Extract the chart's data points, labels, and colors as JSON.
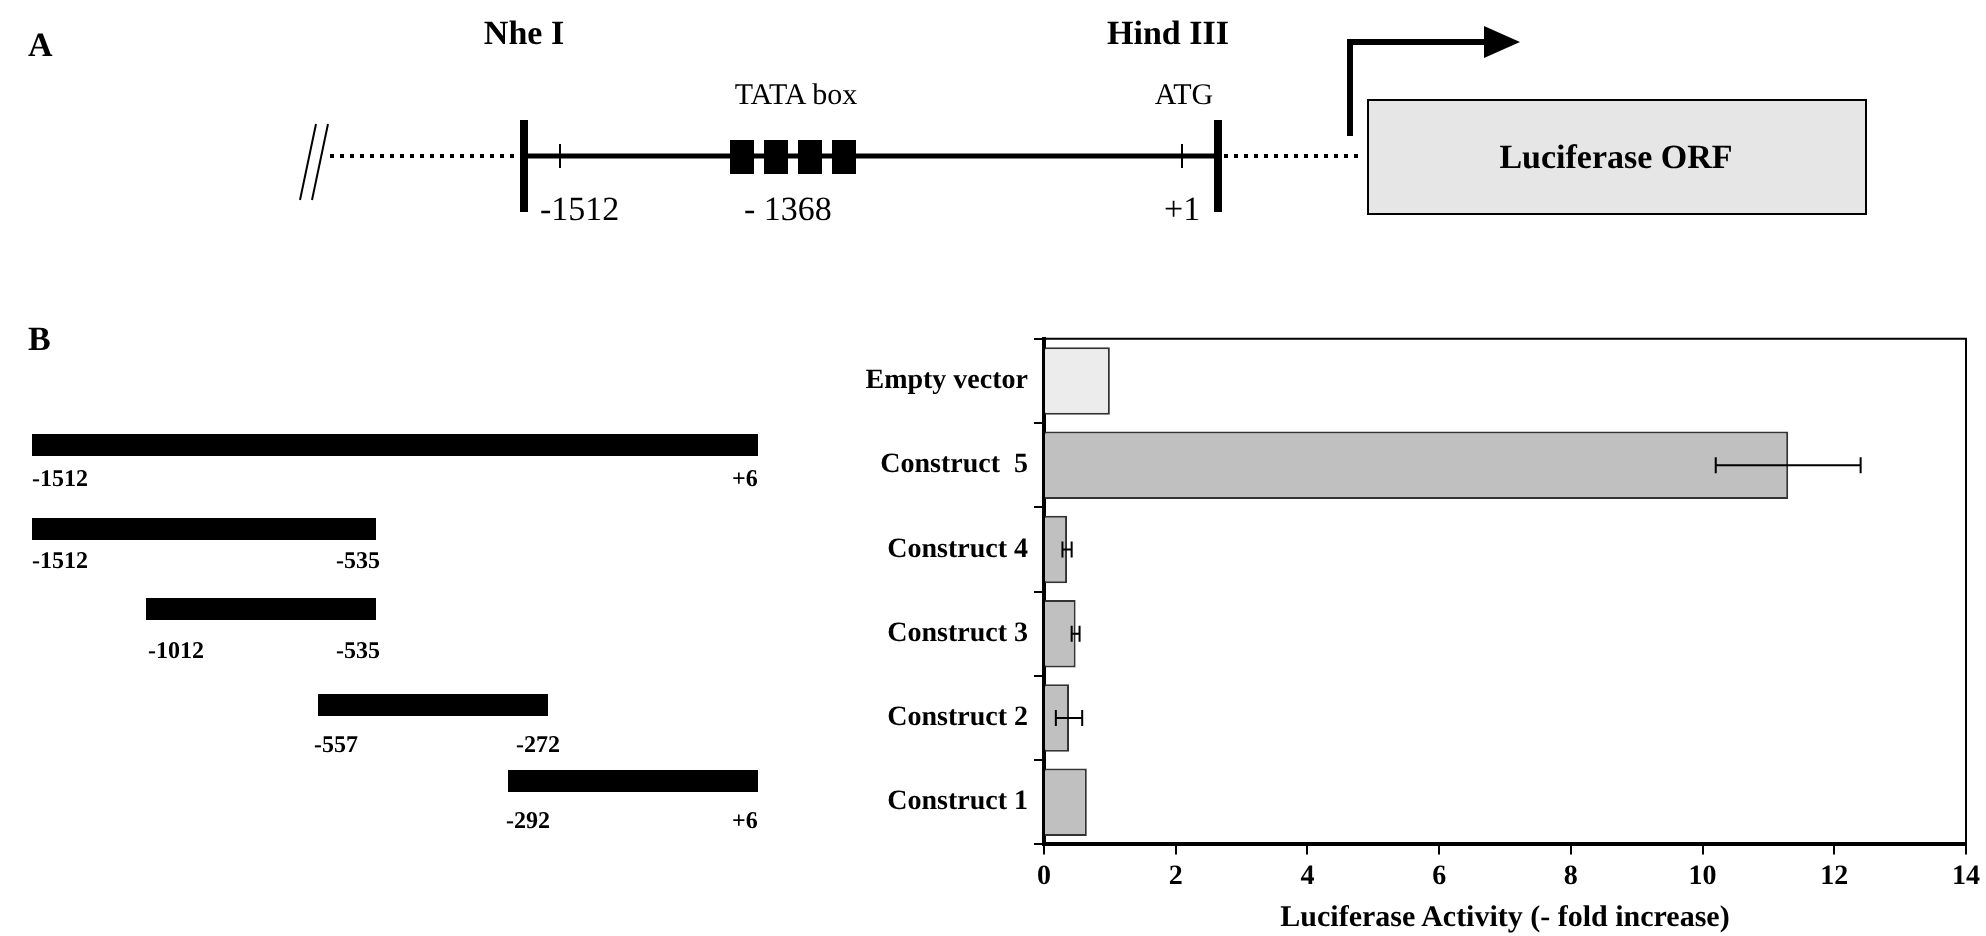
{
  "chart_data": {
    "type": "bar",
    "orientation": "horizontal",
    "categories": [
      "Empty vector",
      "Construct  5",
      "Construct 4",
      "Construct 3",
      "Construct 2",
      "Construct 1"
    ],
    "values": [
      1.0,
      11.3,
      0.35,
      0.48,
      0.38,
      0.65
    ],
    "errors": [
      null,
      1.1,
      0.07,
      0.06,
      0.2,
      null
    ],
    "colors": [
      "#ececec",
      "#c0c0c0",
      "#c0c0c0",
      "#c0c0c0",
      "#c0c0c0",
      "#c0c0c0"
    ],
    "xlim": [
      0,
      14
    ],
    "xticks": [
      0,
      2,
      4,
      6,
      8,
      10,
      12,
      14
    ],
    "xlabel": "Luciferase Activity (- fold increase)",
    "grid": false,
    "legend": false,
    "annotations": [
      "A",
      "Nhe I",
      "Hind III",
      "TATA box",
      "ATG",
      "-1512",
      "- 1368",
      "+1",
      "Luciferase ORF",
      "B",
      "-1512",
      "+6",
      "-1512",
      "-535",
      "-1012",
      "-535",
      "-557",
      "-272",
      "-292",
      "+6"
    ]
  }
}
